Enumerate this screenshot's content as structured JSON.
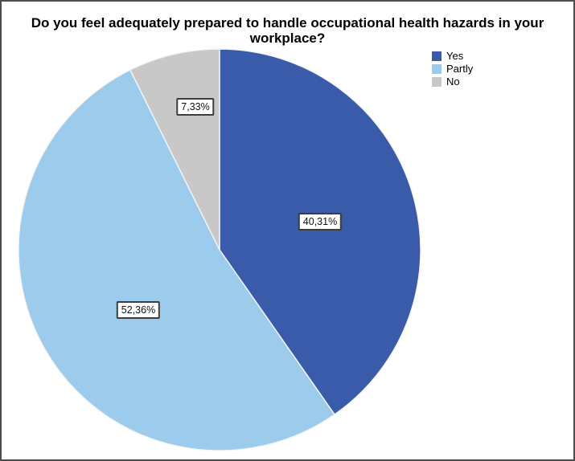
{
  "frame": {
    "background": "#ffffff",
    "border_color": "#4d4d4d"
  },
  "title": {
    "text": "Do you feel adequately prepared to handle occupational health hazards in your workplace?"
  },
  "legend": {
    "items": [
      {
        "label": "Yes",
        "color": "#3a5ba9"
      },
      {
        "label": "Partly",
        "color": "#9ccbeb"
      },
      {
        "label": "No",
        "color": "#c8c8c8"
      }
    ]
  },
  "chart_data": {
    "type": "pie",
    "title": "Do you feel adequately prepared to handle occupational health hazards in your workplace?",
    "categories": [
      "Yes",
      "Partly",
      "No"
    ],
    "values": [
      40.31,
      52.36,
      7.33
    ],
    "labels": [
      "40,31%",
      "52,36%",
      "7,33%"
    ],
    "colors": [
      "#3a5ba9",
      "#9ccbeb",
      "#c8c8c8"
    ],
    "start_angle_deg": 0,
    "direction": "clockwise",
    "legend_position": "top-right",
    "label_style": "boxed",
    "slice_separator_color": "#f5f5f5"
  }
}
